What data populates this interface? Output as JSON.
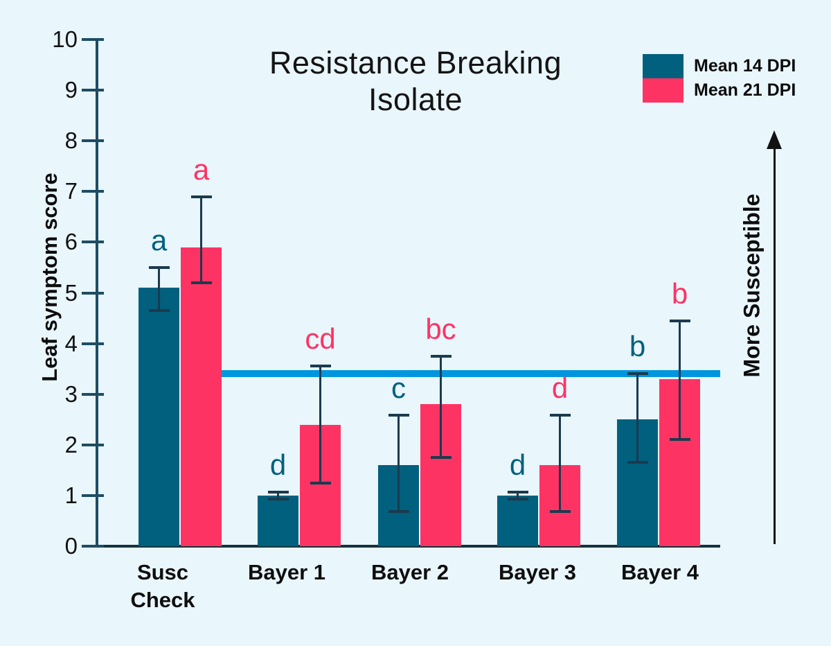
{
  "title": {
    "line1": "Resistance Breaking",
    "line2": "Isolate"
  },
  "y_axis_label": "Leaf symptom score",
  "right_annotation": "More Susceptible",
  "legend": {
    "items": [
      {
        "label": "Mean 14 DPI",
        "color": "#00607e"
      },
      {
        "label": "Mean 21 DPI",
        "color": "#fd3364"
      }
    ]
  },
  "x_tick_display": [
    "Susc\nCheck",
    "Bayer 1",
    "Bayer 2",
    "Bayer 3",
    "Bayer 4"
  ],
  "chart_data": {
    "type": "bar",
    "title": "Resistance Breaking Isolate",
    "categories": [
      "Susc Check",
      "Bayer 1",
      "Bayer 2",
      "Bayer 3",
      "Bayer 4"
    ],
    "xlabel": "",
    "ylabel": "Leaf symptom score",
    "ylim": [
      0,
      10
    ],
    "y_ticks": [
      0,
      1,
      2,
      3,
      4,
      5,
      6,
      7,
      8,
      9,
      10
    ],
    "grid": false,
    "legend_position": "top-right",
    "series": [
      {
        "name": "Mean 14 DPI",
        "color": "#00607e",
        "values": [
          5.1,
          1.0,
          1.6,
          1.0,
          2.5
        ],
        "error_low": [
          4.65,
          0.93,
          0.68,
          0.93,
          1.65
        ],
        "error_high": [
          5.5,
          1.07,
          2.58,
          1.07,
          3.4
        ],
        "sig_letters": [
          "a",
          "d",
          "c",
          "d",
          "b"
        ]
      },
      {
        "name": "Mean 21 DPI",
        "color": "#fd3364",
        "values": [
          5.9,
          2.4,
          2.8,
          1.6,
          3.3
        ],
        "error_low": [
          5.2,
          1.25,
          1.75,
          0.68,
          2.1
        ],
        "error_high": [
          6.9,
          3.55,
          3.75,
          2.58,
          4.45
        ],
        "sig_letters": [
          "a",
          "cd",
          "bc",
          "d",
          "b"
        ]
      }
    ],
    "threshold_line": {
      "value": 3.4,
      "color": "#0096de"
    },
    "annotations": {
      "right_arrow_label": "More Susceptible"
    }
  }
}
